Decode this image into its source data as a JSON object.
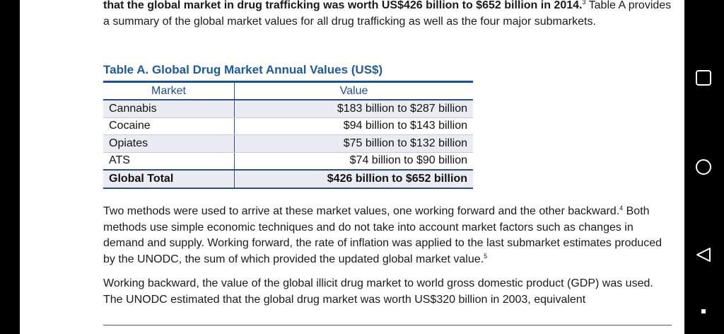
{
  "paragraphs": [
    {
      "bold": "that the global market in drug trafficking was worth US$426 billion to $652 billion in 2014.",
      "sup": "3",
      "text": " Table A provides a summary of the global market values for all drug trafficking as well as the four major submarkets."
    },
    {
      "text": "Two methods were used to arrive at these market values, one working forward and the other backward.",
      "sup": "4",
      "text2": " Both methods use simple economic techniques and do not take into account market factors such as changes in demand and supply. Working forward, the rate of inflation was applied to the last submarket estimates produced by the UNODC, the sum of which provided the updated global market value.",
      "sup2": "5"
    },
    {
      "text": "Working backward, the value of the global illicit drug market to world gross domestic product (GDP) was used. The UNODC estimated that the global drug market was worth US$320 billion in 2003, equivalent"
    }
  ],
  "table": {
    "title": "Table A. Global Drug Market Annual Values (US$)",
    "headers": [
      "Market",
      "Value"
    ],
    "rows": [
      [
        "Cannabis",
        "$183 billion to $287 billion"
      ],
      [
        "Cocaine",
        "$94 billion to $143 billion"
      ],
      [
        "Opiates",
        "$75 billion to $132 billion"
      ],
      [
        "ATS",
        "$74 billion to $90 billion"
      ],
      [
        "Global Total",
        "$426 billion to $652 billion"
      ]
    ]
  }
}
